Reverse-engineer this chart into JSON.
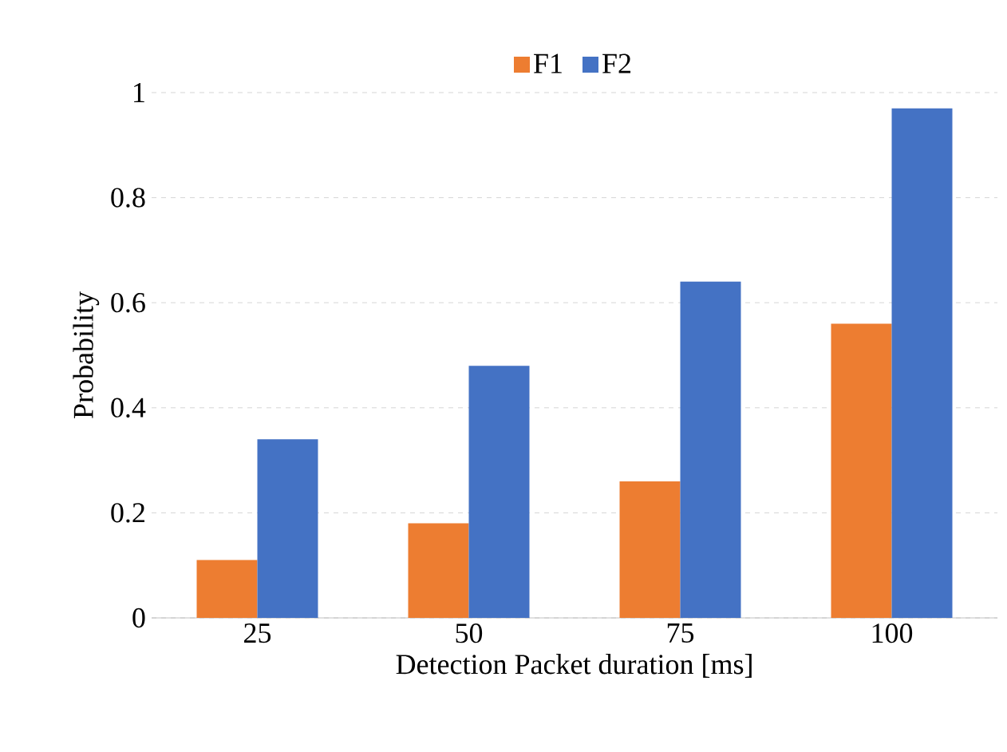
{
  "chart_data": {
    "type": "bar",
    "xlabel": "Detection Packet duration [ms]",
    "ylabel": "Probability",
    "categories": [
      "25",
      "50",
      "75",
      "100"
    ],
    "series": [
      {
        "name": "F1",
        "color": "#ed7d31",
        "values": [
          0.11,
          0.18,
          0.26,
          0.56
        ]
      },
      {
        "name": "F2",
        "color": "#4472c4",
        "values": [
          0.34,
          0.48,
          0.64,
          0.97
        ]
      }
    ],
    "ylim": [
      0,
      1
    ],
    "yticks": [
      0,
      0.2,
      0.4,
      0.6,
      0.8,
      1
    ],
    "grid": "y",
    "legend": "top"
  }
}
